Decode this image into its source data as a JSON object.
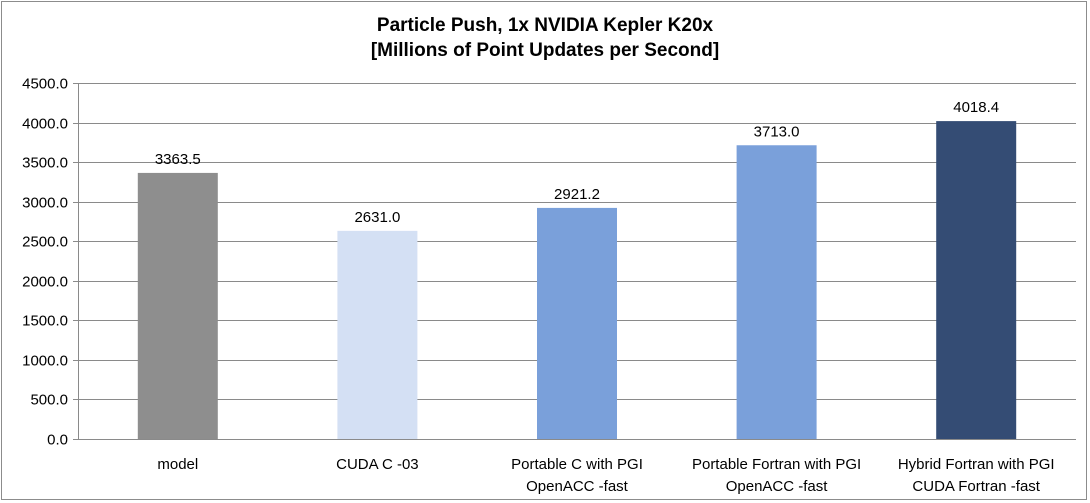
{
  "chart_data": {
    "type": "bar",
    "title_lines": [
      "Particle Push, 1x NVIDIA Kepler K20x",
      "[Millions of Point Updates per Second]"
    ],
    "xlabel": "",
    "ylabel": "",
    "ylim": [
      0,
      4500
    ],
    "y_ticks": [
      "0.0",
      "500.0",
      "1000.0",
      "1500.0",
      "2000.0",
      "2500.0",
      "3000.0",
      "3500.0",
      "4000.0",
      "4500.0"
    ],
    "y_tick_values": [
      0,
      500,
      1000,
      1500,
      2000,
      2500,
      3000,
      3500,
      4000,
      4500
    ],
    "grid": true,
    "legend": "none",
    "categories": [
      [
        "model"
      ],
      [
        "CUDA C -03"
      ],
      [
        "Portable C with PGI",
        "OpenACC -fast"
      ],
      [
        "Portable Fortran with PGI",
        "OpenACC -fast"
      ],
      [
        "Hybrid Fortran with PGI",
        "CUDA Fortran -fast"
      ]
    ],
    "values": [
      3363.5,
      2631.0,
      2921.2,
      3713.0,
      4018.4
    ],
    "data_labels": [
      "3363.5",
      "2631.0",
      "2921.2",
      "3713.0",
      "4018.4"
    ],
    "colors": [
      "#8e8e8e",
      "#d4e0f4",
      "#7aa0da",
      "#7aa0da",
      "#344c74"
    ]
  }
}
